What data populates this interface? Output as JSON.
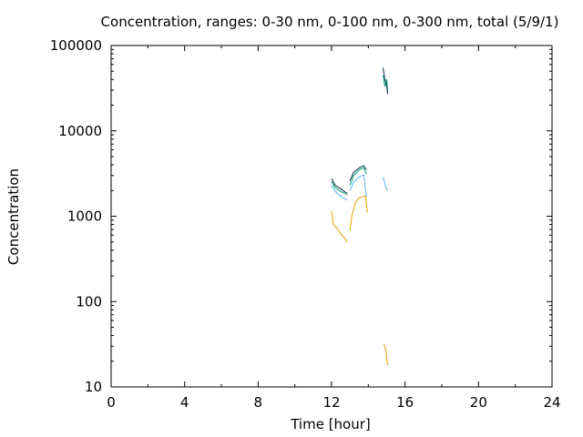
{
  "chart_data": {
    "type": "line",
    "title": "Concentration, ranges: 0-30 nm, 0-100 nm, 0-300 nm, total (5/9/1)",
    "xlabel": "Time [hour]",
    "ylabel": "Concentration",
    "xlim": [
      0,
      24
    ],
    "ylim": [
      10,
      100000
    ],
    "yscale": "log",
    "grid": false,
    "xticks": [
      0,
      4,
      8,
      12,
      16,
      20,
      24
    ],
    "xtick_labels": [
      "0",
      "4",
      "8",
      "12",
      "16",
      "20",
      "24"
    ],
    "yticks": [
      10,
      100,
      1000,
      10000,
      100000
    ],
    "ytick_labels": [
      "10",
      "100",
      "1000",
      "10000",
      "100000"
    ],
    "series": [
      {
        "color": "#e69f00",
        "segments": [
          [
            [
              12.0,
              1150
            ],
            [
              12.1,
              800
            ],
            [
              12.3,
              720
            ],
            [
              12.5,
              620
            ],
            [
              12.7,
              560
            ],
            [
              12.85,
              500
            ]
          ],
          [
            [
              13.0,
              680
            ],
            [
              13.1,
              1000
            ],
            [
              13.3,
              1450
            ],
            [
              13.5,
              1650
            ],
            [
              13.7,
              1700
            ],
            [
              13.85,
              1720
            ],
            [
              13.95,
              1100
            ]
          ],
          [
            [
              14.85,
              32
            ],
            [
              14.95,
              27
            ],
            [
              15.05,
              18
            ]
          ]
        ]
      },
      {
        "color": "#56b4e9",
        "segments": [
          [
            [
              12.0,
              2300
            ],
            [
              12.2,
              1950
            ],
            [
              12.5,
              1700
            ],
            [
              12.85,
              1550
            ]
          ],
          [
            [
              13.0,
              2000
            ],
            [
              13.2,
              2500
            ],
            [
              13.5,
              2900
            ],
            [
              13.75,
              3050
            ],
            [
              13.9,
              1700
            ]
          ],
          [
            [
              14.8,
              2900
            ],
            [
              14.95,
              2200
            ],
            [
              15.05,
              2000
            ]
          ]
        ]
      },
      {
        "color": "#009e73",
        "segments": [
          [
            [
              12.0,
              2550
            ],
            [
              12.2,
              2150
            ],
            [
              12.5,
              1950
            ],
            [
              12.85,
              1800
            ]
          ],
          [
            [
              13.0,
              2300
            ],
            [
              13.2,
              3000
            ],
            [
              13.5,
              3500
            ],
            [
              13.75,
              3700
            ],
            [
              13.9,
              3100
            ]
          ],
          [
            [
              14.8,
              45000
            ],
            [
              14.9,
              33000
            ],
            [
              15.0,
              40000
            ],
            [
              15.05,
              29000
            ]
          ]
        ]
      },
      {
        "color": "#0c2d48",
        "segments": [
          [
            [
              12.0,
              2750
            ],
            [
              12.2,
              2300
            ],
            [
              12.5,
              2100
            ],
            [
              12.85,
              1850
            ]
          ],
          [
            [
              13.0,
              2600
            ],
            [
              13.2,
              3250
            ],
            [
              13.5,
              3700
            ],
            [
              13.75,
              3900
            ],
            [
              13.9,
              3500
            ]
          ],
          [
            [
              14.8,
              55000
            ],
            [
              14.9,
              40000
            ],
            [
              15.0,
              34000
            ],
            [
              15.05,
              27000
            ]
          ]
        ]
      }
    ]
  }
}
